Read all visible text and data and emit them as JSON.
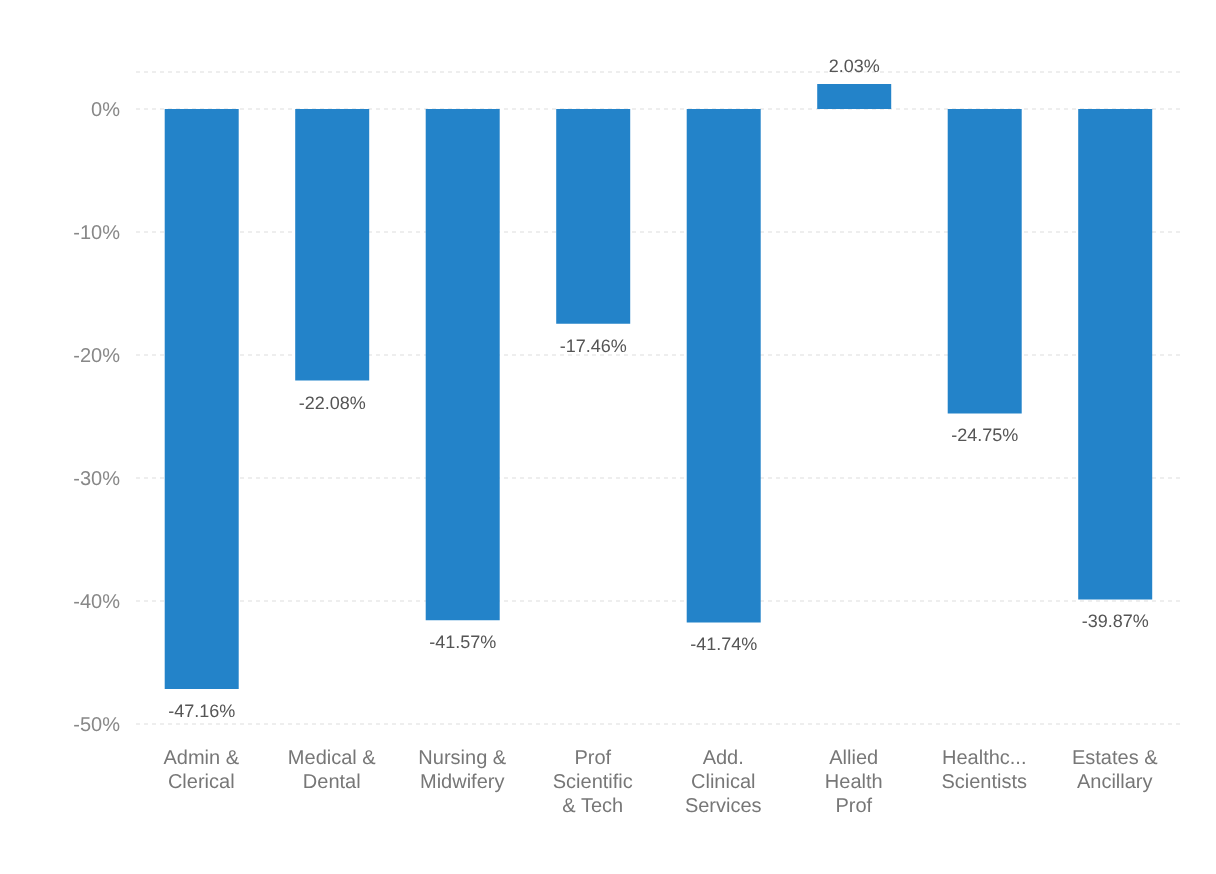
{
  "chart_data": {
    "type": "bar",
    "categories": [
      "Admin & Clerical",
      "Medical & Dental",
      "Nursing & Midwifery",
      "Prof Scientific & Tech",
      "Add. Clinical Services",
      "Allied Health Prof",
      "Healthc... Scientists",
      "Estates & Ancillary"
    ],
    "values": [
      -47.16,
      -22.08,
      -41.57,
      -17.46,
      -41.74,
      2.03,
      -24.75,
      -39.87
    ],
    "value_labels": [
      "-47.16%",
      "-22.08%",
      "-41.57%",
      "-17.46%",
      "-41.74%",
      "2.03%",
      "-24.75%",
      "-39.87%"
    ],
    "color": "#2383c9",
    "ylim": [
      -50,
      3
    ],
    "yticks": [
      {
        "value": 0,
        "label": "0%"
      },
      {
        "value": -10,
        "label": "-10%"
      },
      {
        "value": -20,
        "label": "-20%"
      },
      {
        "value": -30,
        "label": "-30%"
      },
      {
        "value": -40,
        "label": "-40%"
      },
      {
        "value": -50,
        "label": "-50%"
      }
    ],
    "grid": "y",
    "legend": false
  }
}
